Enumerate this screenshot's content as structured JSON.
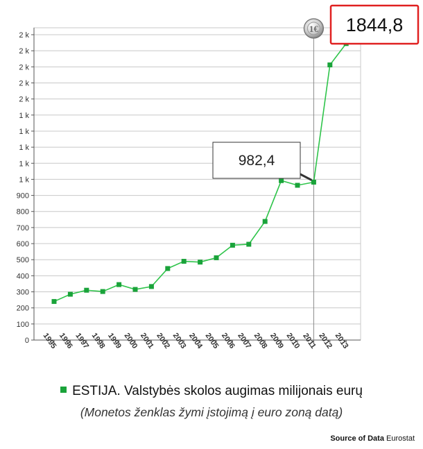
{
  "chart_data": {
    "type": "line",
    "title": "ESTIJA. Valstybės skolos augimas milijonais eurų",
    "subtitle": "(Monetos ženklas žymi įstojimą į euro zoną datą)",
    "x": [
      "1995",
      "1996",
      "1997",
      "1998",
      "1999",
      "2000",
      "2001",
      "2002",
      "2003",
      "2004",
      "2005",
      "2006",
      "2007",
      "2008",
      "2009",
      "2010",
      "2011",
      "2012",
      "2013"
    ],
    "series": [
      {
        "name": "ESTIJA. Valstybės skolos augimas milijonais eurų",
        "values": [
          240,
          285,
          310,
          302,
          345,
          315,
          333,
          445,
          490,
          485,
          512,
          590,
          596,
          738,
          992,
          963,
          982.4,
          1712,
          1844.8
        ],
        "color": "#1aa33a"
      }
    ],
    "y_ticks": [
      {
        "value": 0,
        "label": "0"
      },
      {
        "value": 100,
        "label": "100"
      },
      {
        "value": 200,
        "label": "200"
      },
      {
        "value": 300,
        "label": "300"
      },
      {
        "value": 400,
        "label": "400"
      },
      {
        "value": 500,
        "label": "500"
      },
      {
        "value": 600,
        "label": "600"
      },
      {
        "value": 700,
        "label": "700"
      },
      {
        "value": 800,
        "label": "800"
      },
      {
        "value": 900,
        "label": "900"
      },
      {
        "value": 1000,
        "label": "1 k"
      },
      {
        "value": 1100,
        "label": "1 k"
      },
      {
        "value": 1200,
        "label": "1 k"
      },
      {
        "value": 1300,
        "label": "1 k"
      },
      {
        "value": 1400,
        "label": "1 k"
      },
      {
        "value": 1500,
        "label": "2 k"
      },
      {
        "value": 1600,
        "label": "2 k"
      },
      {
        "value": 1700,
        "label": "2 k"
      },
      {
        "value": 1800,
        "label": "2 k"
      },
      {
        "value": 1900,
        "label": "2 k"
      }
    ],
    "ylim": [
      0,
      1900
    ],
    "grid": true,
    "legend": "bottom",
    "annotations": [
      {
        "x": "2011",
        "value": 982.4,
        "label": "982,4"
      },
      {
        "x": "2013",
        "value": 1844.8,
        "label": "1844,8"
      }
    ],
    "euro_adoption_marker": {
      "x": "2011",
      "icon": "euro-coin-icon"
    },
    "colors": {
      "series": "#1aa33a",
      "line": "#2ec44a",
      "highlight_border": "#e02020"
    }
  },
  "source": {
    "prefix": "Source of Data",
    "name": "Eurostat"
  }
}
